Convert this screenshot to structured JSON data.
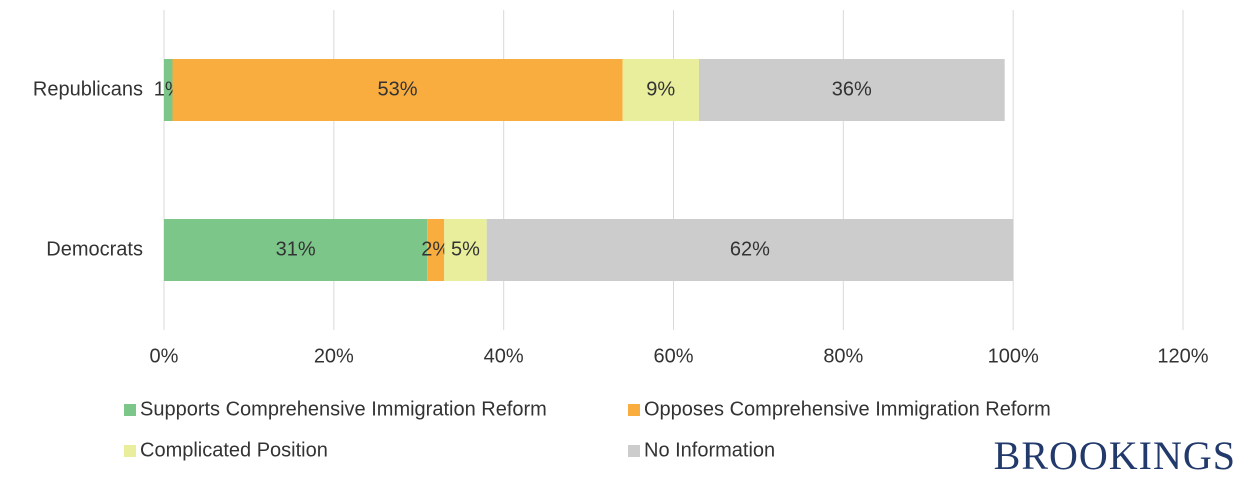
{
  "chart_data": {
    "type": "stacked-barh",
    "categories": [
      "Republicans",
      "Democrats"
    ],
    "series": [
      {
        "name": "Supports Comprehensive Immigration Reform",
        "color": "#7dc68a",
        "values": [
          1,
          31
        ],
        "value_labels": [
          "1%",
          "31%"
        ]
      },
      {
        "name": "Opposes Comprehensive Immigration Reform",
        "color": "#f9ad3f",
        "values": [
          53,
          2
        ],
        "value_labels": [
          "53%",
          "2%"
        ]
      },
      {
        "name": "Complicated Position",
        "color": "#e8ee9c",
        "values": [
          9,
          5
        ],
        "value_labels": [
          "9%",
          "5%"
        ]
      },
      {
        "name": "No Information",
        "color": "#cccccc",
        "values": [
          36,
          62
        ],
        "value_labels": [
          "36%",
          "62%"
        ]
      }
    ],
    "xlim": [
      0,
      120
    ],
    "xticks": [
      {
        "value": 0,
        "label": "0%"
      },
      {
        "value": 20,
        "label": "20%"
      },
      {
        "value": 40,
        "label": "40%"
      },
      {
        "value": 60,
        "label": "60%"
      },
      {
        "value": 80,
        "label": "80%"
      },
      {
        "value": 100,
        "label": "100%"
      },
      {
        "value": 120,
        "label": "120%"
      }
    ],
    "grid": true,
    "brand": "BROOKINGS"
  }
}
